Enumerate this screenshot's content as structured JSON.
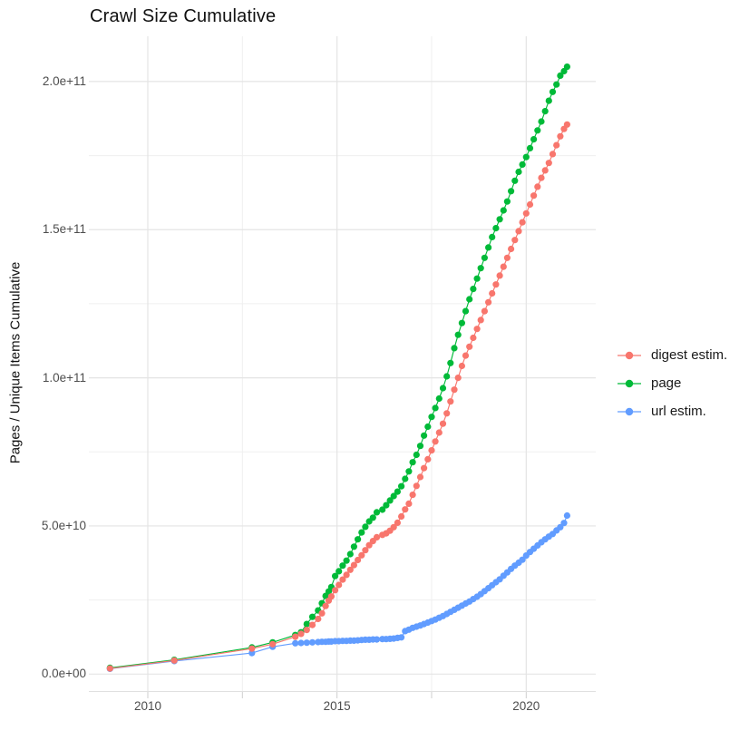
{
  "title": "Crawl Size Cumulative",
  "colors": {
    "background": "#ffffff",
    "grid_major": "#e4e4e4",
    "grid_minor": "#efefef",
    "axis_line": "#e0e0e0",
    "tick_mark": "#cfcfcf",
    "axis_text": "#4d4d4d",
    "title_text": "#111111"
  },
  "chart_data": {
    "type": "scatter",
    "title": "Crawl Size Cumulative",
    "xlabel": "",
    "ylabel": "Pages / Unique Items Cumulative",
    "grid": true,
    "legend_position": "right",
    "x_axis": {
      "tick_labels": [
        "2010",
        "2015",
        "2020"
      ],
      "tick_years": [
        2010,
        2015,
        2020
      ],
      "minor_years": [
        2012.5,
        2017.5
      ],
      "range_years": [
        2008.4,
        2021.9
      ]
    },
    "y_axis": {
      "tick_labels": [
        "0.0e+00",
        "5.0e+10",
        "1.0e+11",
        "1.5e+11",
        "2.0e+11"
      ],
      "tick_values_e9": [
        0,
        50,
        100,
        150,
        200
      ],
      "minor_values_e9": [
        25,
        75,
        125,
        175
      ],
      "range_e9": [
        -6,
        215
      ],
      "units_note": "values in billions (1e9) of pages / unique items"
    },
    "x_years": [
      2009.0,
      2010.7,
      2012.75,
      2013.3,
      2013.9,
      2014.05,
      2014.2,
      2014.35,
      2014.5,
      2014.6,
      2014.7,
      2014.78,
      2014.85,
      2014.95,
      2015.05,
      2015.15,
      2015.25,
      2015.35,
      2015.45,
      2015.55,
      2015.65,
      2015.75,
      2015.85,
      2015.95,
      2016.05,
      2016.2,
      2016.3,
      2016.4,
      2016.5,
      2016.6,
      2016.7,
      2016.8,
      2016.9,
      2017.0,
      2017.1,
      2017.2,
      2017.3,
      2017.4,
      2017.5,
      2017.6,
      2017.7,
      2017.8,
      2017.9,
      2018.0,
      2018.1,
      2018.2,
      2018.3,
      2018.4,
      2018.5,
      2018.6,
      2018.7,
      2018.8,
      2018.9,
      2019.0,
      2019.1,
      2019.2,
      2019.3,
      2019.4,
      2019.5,
      2019.6,
      2019.7,
      2019.8,
      2019.9,
      2020.0,
      2020.1,
      2020.2,
      2020.3,
      2020.4,
      2020.5,
      2020.6,
      2020.7,
      2020.8,
      2020.9,
      2021.0,
      2021.08
    ],
    "series": [
      {
        "name": "digest estim.",
        "color": "#F8766D",
        "values_e9": [
          1.9,
          4.6,
          8.6,
          10.1,
          12.6,
          13.6,
          14.9,
          16.6,
          18.6,
          20.5,
          23.0,
          24.8,
          26.2,
          28.3,
          30.1,
          31.9,
          33.5,
          35.2,
          36.8,
          38.5,
          40.1,
          41.8,
          43.5,
          44.9,
          46.2,
          47.0,
          47.5,
          48.4,
          49.6,
          51.1,
          53.2,
          55.6,
          57.5,
          60.5,
          63.5,
          66.5,
          69.5,
          72.5,
          75.5,
          78.5,
          81.5,
          84.5,
          88.0,
          92.0,
          96.0,
          100.0,
          104.0,
          107.5,
          110.5,
          113.5,
          116.5,
          119.5,
          122.5,
          125.5,
          128.5,
          131.5,
          134.5,
          137.5,
          140.5,
          143.5,
          146.5,
          149.5,
          152.5,
          155.5,
          158.5,
          161.5,
          164.5,
          167.5,
          170.0,
          172.5,
          175.5,
          178.5,
          181.5,
          184.0,
          185.5
        ]
      },
      {
        "name": "page",
        "color": "#00BA38",
        "values_e9": [
          2.1,
          4.8,
          9.0,
          10.7,
          13.2,
          14.1,
          16.9,
          19.3,
          21.5,
          23.9,
          26.4,
          27.9,
          29.4,
          33.1,
          34.7,
          36.6,
          38.3,
          40.5,
          43.0,
          45.5,
          47.8,
          49.7,
          51.5,
          52.8,
          54.6,
          55.5,
          57.0,
          58.6,
          60.1,
          61.6,
          63.4,
          65.9,
          68.4,
          71.5,
          74.0,
          77.0,
          80.5,
          83.5,
          86.8,
          89.8,
          93.0,
          96.5,
          100.5,
          105.0,
          110.0,
          114.5,
          118.5,
          122.5,
          126.5,
          130.0,
          133.5,
          137.0,
          140.5,
          144.0,
          147.5,
          150.5,
          153.5,
          156.5,
          159.5,
          163.0,
          166.5,
          169.5,
          172.0,
          174.5,
          177.5,
          180.5,
          183.5,
          186.5,
          190.0,
          193.5,
          196.5,
          199.0,
          202.0,
          203.5,
          205.0
        ]
      },
      {
        "name": "url estim.",
        "color": "#619CFF",
        "values_e9": [
          1.8,
          4.4,
          7.1,
          9.2,
          10.4,
          10.5,
          10.6,
          10.7,
          10.8,
          10.9,
          10.9,
          11.0,
          11.0,
          11.1,
          11.1,
          11.2,
          11.2,
          11.3,
          11.3,
          11.4,
          11.5,
          11.6,
          11.6,
          11.7,
          11.7,
          11.8,
          11.8,
          11.9,
          12.0,
          12.2,
          12.4,
          14.5,
          15.0,
          15.6,
          16.0,
          16.4,
          16.9,
          17.4,
          17.9,
          18.4,
          19.0,
          19.6,
          20.3,
          21.0,
          21.7,
          22.4,
          23.1,
          23.8,
          24.5,
          25.3,
          26.1,
          27.0,
          28.0,
          29.0,
          30.0,
          31.0,
          32.0,
          33.2,
          34.3,
          35.5,
          36.6,
          37.6,
          38.6,
          40.0,
          41.2,
          42.3,
          43.4,
          44.5,
          45.5,
          46.4,
          47.3,
          48.5,
          49.6,
          51.0,
          53.5
        ]
      }
    ]
  }
}
